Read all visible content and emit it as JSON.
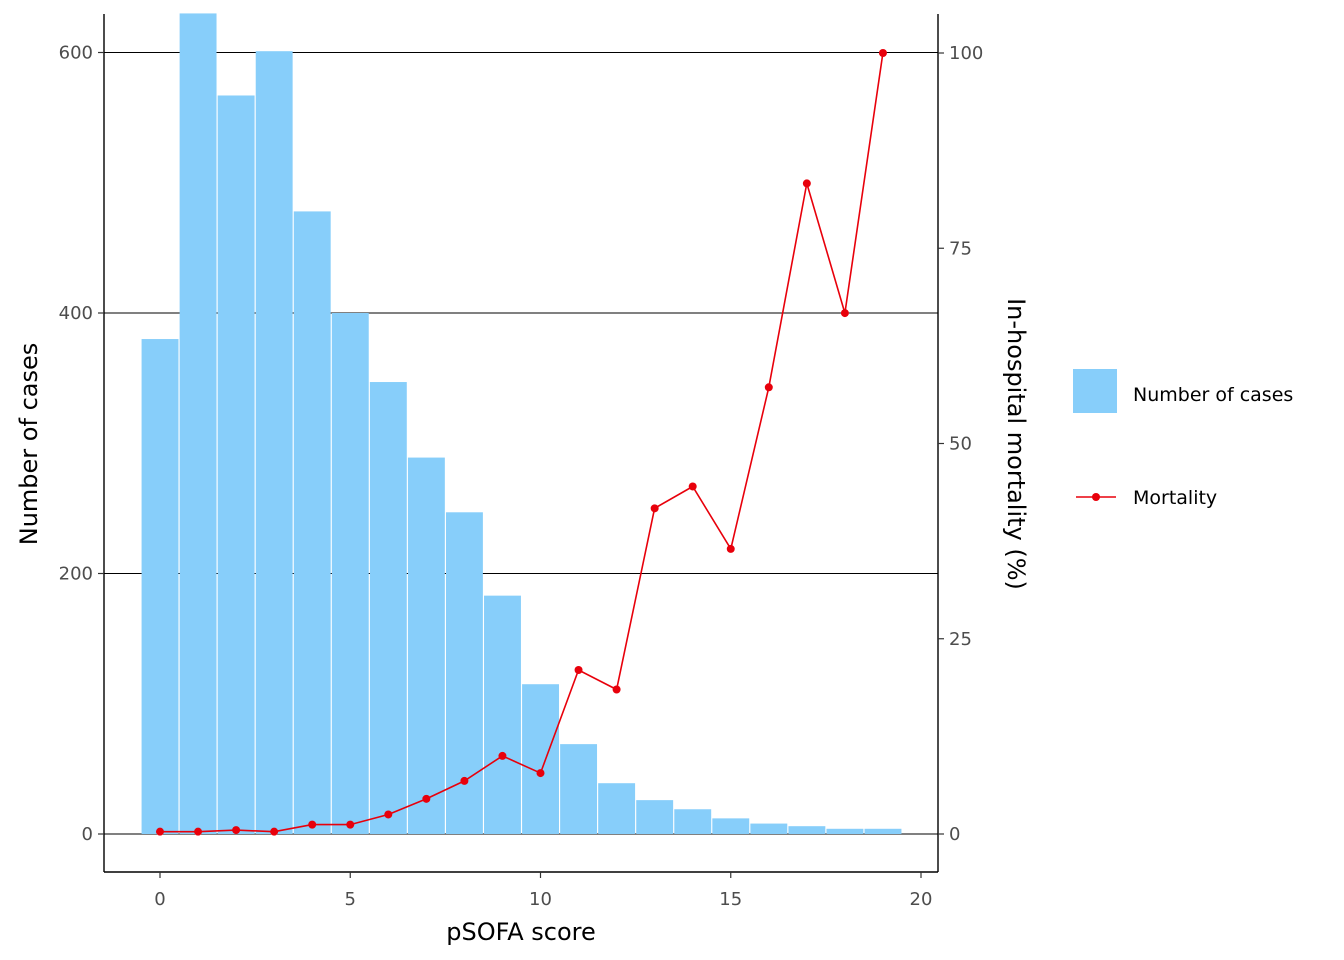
{
  "chart_data": {
    "type": "bar",
    "x_axis": {
      "label": "pSOFA score",
      "range": [
        -0.5,
        19.5
      ],
      "ticks": [
        0,
        5,
        10,
        15,
        20
      ]
    },
    "y_axis_left": {
      "label": "Number of cases",
      "range": [
        0,
        630
      ],
      "ticks": [
        0,
        200,
        400,
        600
      ]
    },
    "y_axis_right": {
      "label": "In-hospital mortality (%)",
      "range": [
        0,
        100
      ],
      "ticks": [
        0,
        25,
        50,
        75,
        100
      ]
    },
    "grid": "horizontal major lines at left-axis ticks",
    "legend_position": "right",
    "x": [
      0,
      1,
      2,
      3,
      4,
      5,
      6,
      7,
      8,
      9,
      10,
      11,
      12,
      13,
      14,
      15,
      16,
      17,
      18,
      19
    ],
    "series": [
      {
        "name": "Number of cases",
        "type": "bar",
        "axis": "left",
        "color": "#87CEFA",
        "values": [
          380,
          630,
          567,
          601,
          478,
          400,
          347,
          289,
          247,
          183,
          115,
          69,
          39,
          26,
          19,
          12,
          8,
          6,
          4,
          4
        ]
      },
      {
        "name": "Mortality",
        "type": "line",
        "axis": "right",
        "color": "#E8000B",
        "values": [
          0.3,
          0.3,
          0.5,
          0.3,
          1.2,
          1.2,
          2.5,
          4.5,
          6.8,
          10,
          7.8,
          21,
          18.5,
          41.7,
          44.5,
          36.5,
          57.2,
          83.3,
          66.7,
          100
        ]
      }
    ]
  }
}
